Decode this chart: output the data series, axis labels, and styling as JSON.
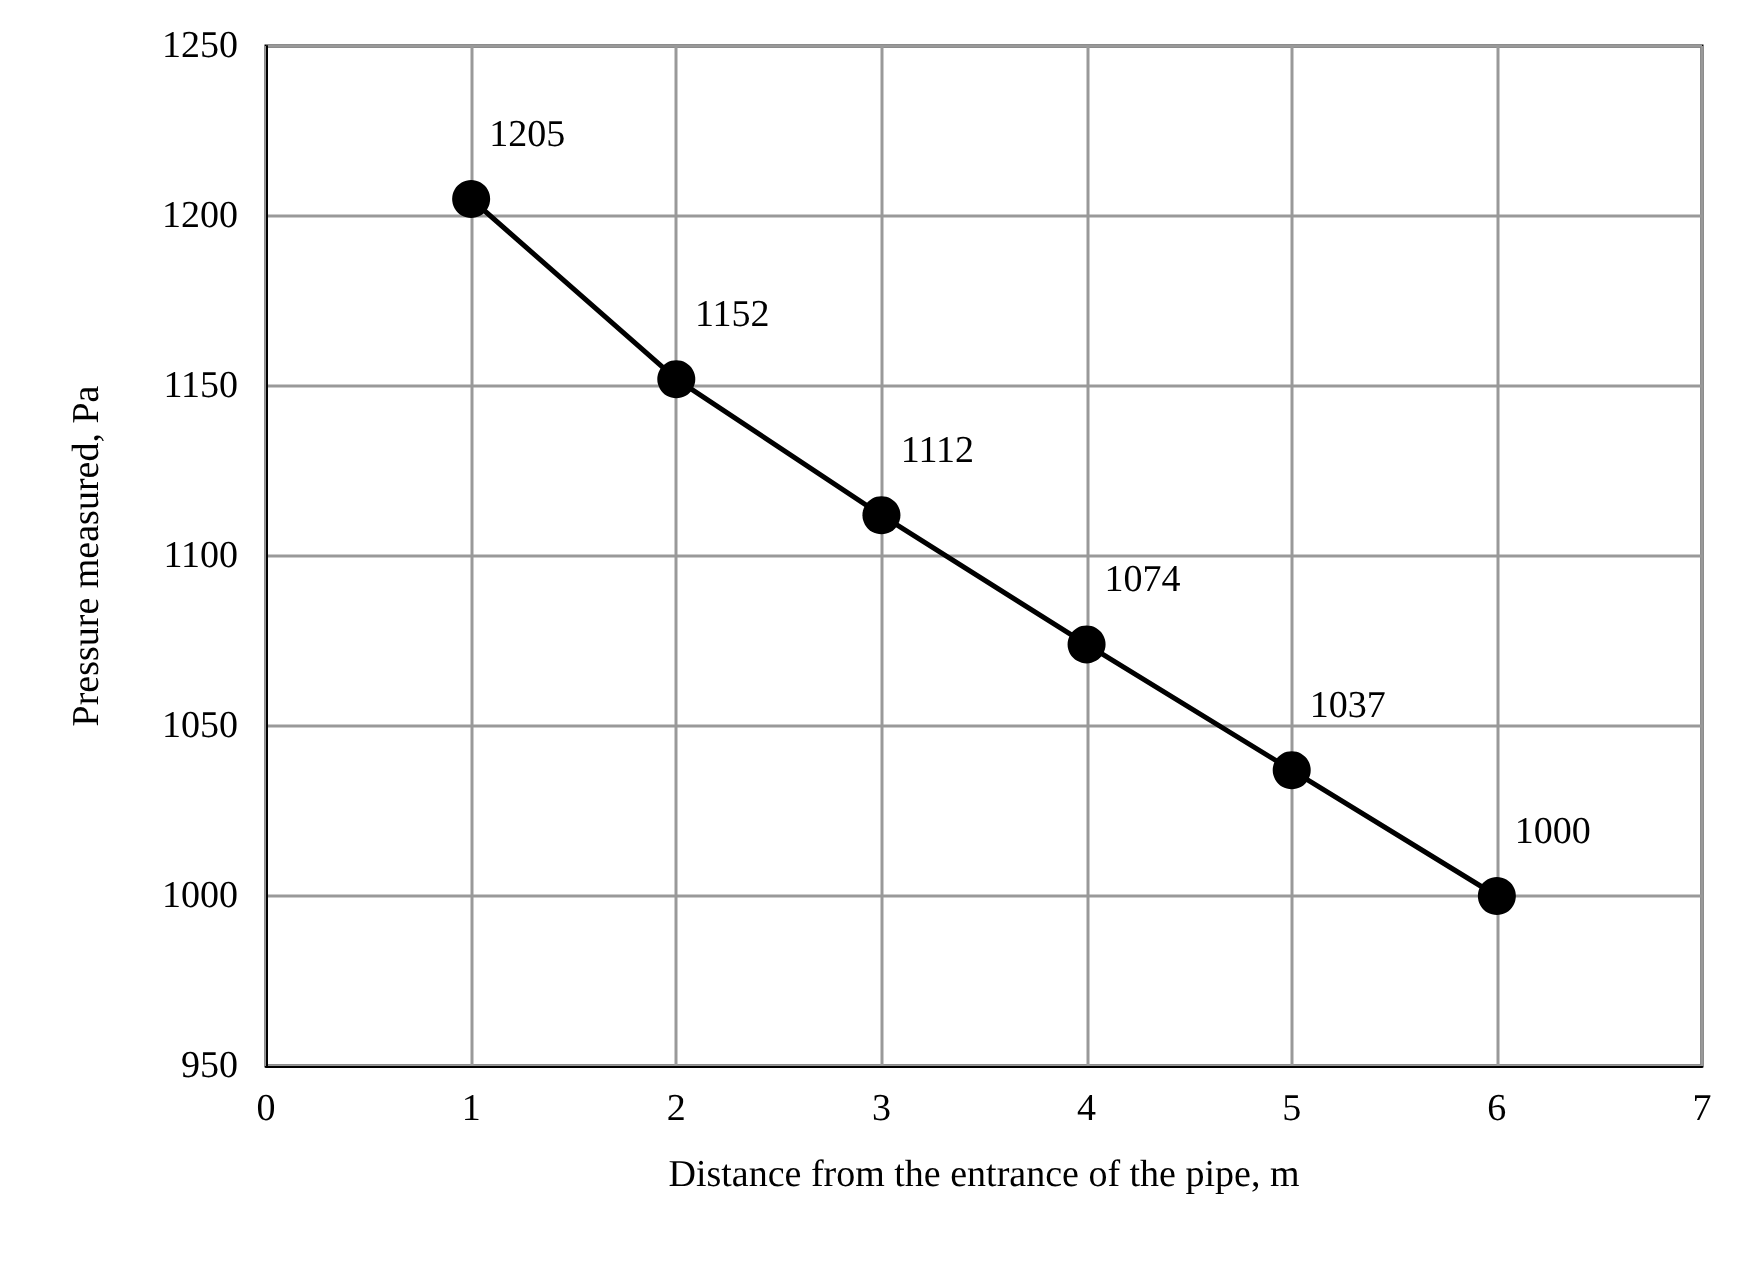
{
  "chart_data": {
    "type": "line",
    "xlabel": "Distance from the entrance of the pipe, m",
    "ylabel": "Pressure measured, Pa",
    "x": [
      1,
      2,
      3,
      4,
      5,
      6
    ],
    "series": [
      {
        "color": "#000000",
        "values": [
          1205,
          1152,
          1112,
          1074,
          1037,
          1000
        ]
      }
    ],
    "xlim": [
      0,
      7
    ],
    "xticks": [
      0,
      1,
      2,
      3,
      4,
      5,
      6,
      7
    ],
    "ylim": [
      950,
      1250
    ],
    "yticks": [
      950,
      1000,
      1050,
      1100,
      1150,
      1200,
      1250
    ],
    "grid": true,
    "marker": "circle",
    "line_style": "solid",
    "data_labels": true
  }
}
